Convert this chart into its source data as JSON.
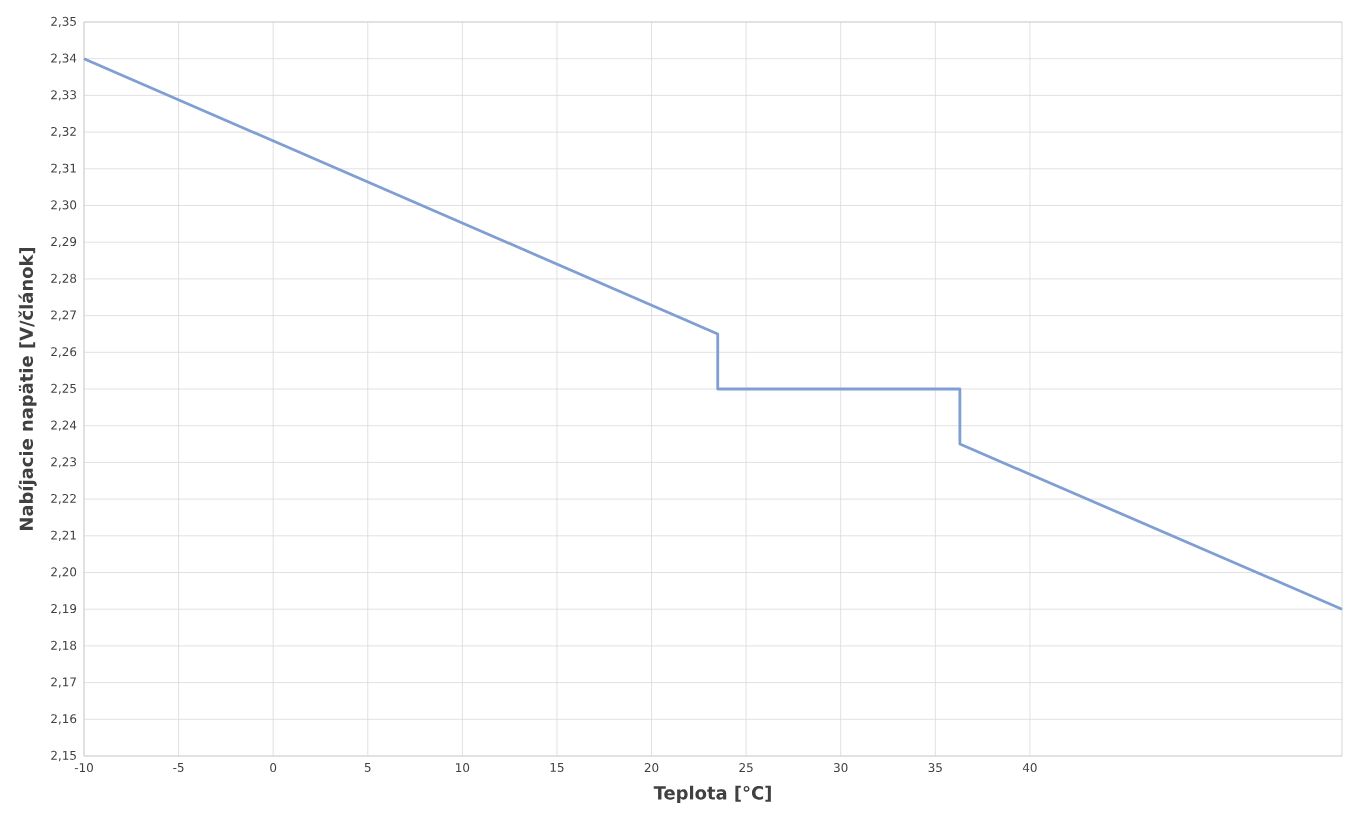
{
  "chart_data": {
    "type": "line",
    "xlabel": "Teplota [°C]",
    "ylabel": "Nabíjacie napätie [V/článok]",
    "x": [
      -10,
      23.5,
      23.5,
      36.3,
      36.3,
      56.5
    ],
    "series": [
      {
        "color": "#7f9fd2",
        "values": [
          2.34,
          2.265,
          2.25,
          2.25,
          2.235,
          2.19
        ]
      }
    ],
    "xlim": [
      -10,
      56.5
    ],
    "xticks": [
      -10,
      -5,
      0,
      5,
      10,
      15,
      20,
      25,
      30,
      35,
      40
    ],
    "ylim": [
      2.15,
      2.35
    ],
    "yticks": [
      {
        "value": 2.15,
        "label": "2,15"
      },
      {
        "value": 2.16,
        "label": "2,16"
      },
      {
        "value": 2.17,
        "label": "2,17"
      },
      {
        "value": 2.18,
        "label": "2,18"
      },
      {
        "value": 2.19,
        "label": "2,19"
      },
      {
        "value": 2.2,
        "label": "2,20"
      },
      {
        "value": 2.21,
        "label": "2,21"
      },
      {
        "value": 2.22,
        "label": "2,22"
      },
      {
        "value": 2.23,
        "label": "2,23"
      },
      {
        "value": 2.24,
        "label": "2,24"
      },
      {
        "value": 2.25,
        "label": "2,25"
      },
      {
        "value": 2.26,
        "label": "2,26"
      },
      {
        "value": 2.27,
        "label": "2,27"
      },
      {
        "value": 2.28,
        "label": "2,28"
      },
      {
        "value": 2.29,
        "label": "2,29"
      },
      {
        "value": 2.3,
        "label": "2,30"
      },
      {
        "value": 2.31,
        "label": "2,31"
      },
      {
        "value": 2.32,
        "label": "2,32"
      },
      {
        "value": 2.33,
        "label": "2,33"
      },
      {
        "value": 2.34,
        "label": "2,34"
      },
      {
        "value": 2.35,
        "label": "2,35"
      }
    ],
    "grid": true,
    "marker": "none",
    "line_style": "solid"
  }
}
